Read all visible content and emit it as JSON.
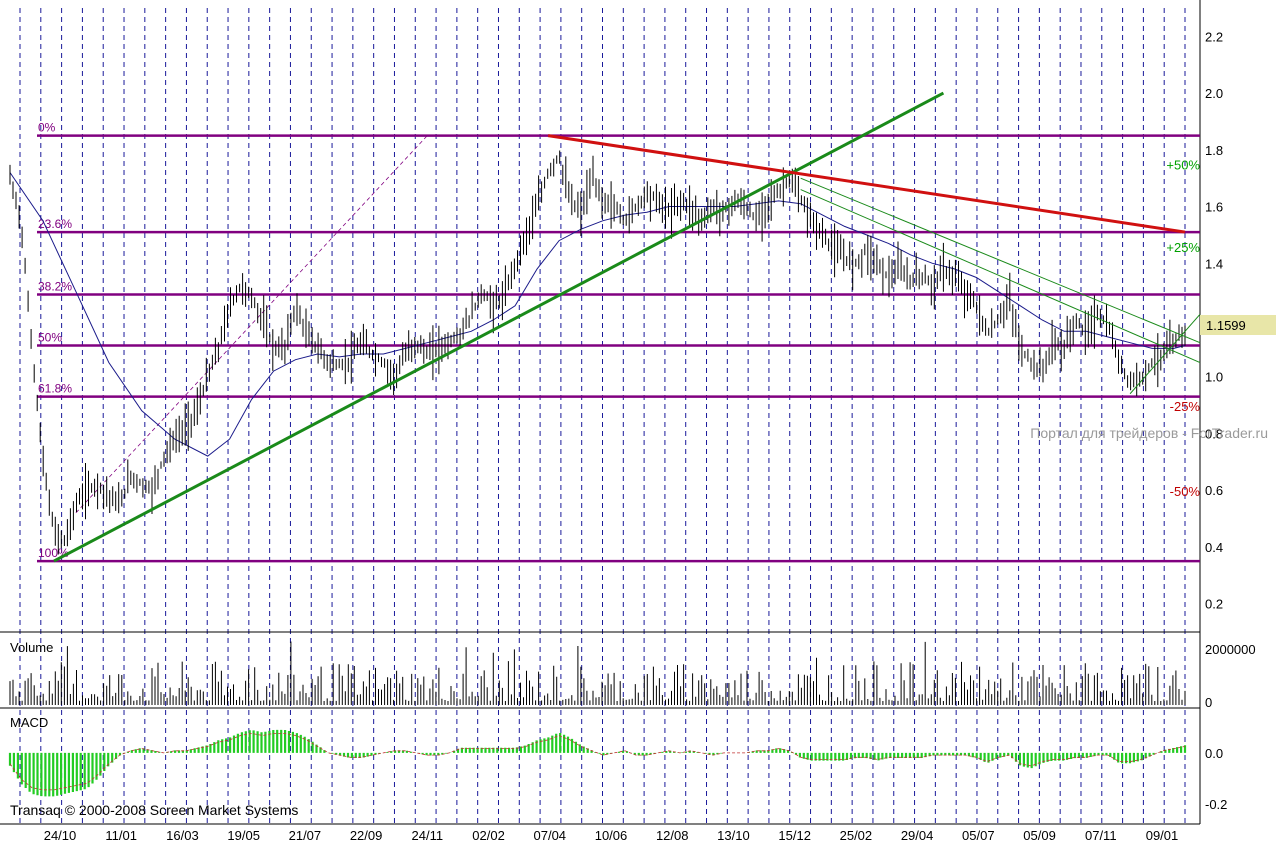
{
  "chart_data": [
    {
      "type": "candlestick",
      "title": "",
      "last_price_label": "1.1599",
      "last_price": 1.1599,
      "ylim": [
        0.1,
        2.3
      ],
      "yticks": [
        "0.2",
        "0.4",
        "0.6",
        "0.8",
        "1.0",
        "1.2",
        "1.4",
        "1.6",
        "1.8",
        "2.0",
        "2.2"
      ],
      "xticks": [
        "24/10",
        "11/01",
        "16/03",
        "19/05",
        "21/07",
        "22/09",
        "24/11",
        "02/02",
        "07/04",
        "10/06",
        "12/08",
        "13/10",
        "15/12",
        "25/02",
        "29/04",
        "05/07",
        "05/09",
        "07/11",
        "09/01"
      ],
      "close_path": [
        [
          0,
          1.7
        ],
        [
          1,
          1.55
        ],
        [
          2,
          1.1
        ],
        [
          3,
          0.7
        ],
        [
          4,
          0.45
        ],
        [
          5,
          0.42
        ],
        [
          6,
          0.55
        ],
        [
          7,
          0.6
        ],
        [
          8,
          0.62
        ],
        [
          9,
          0.58
        ],
        [
          10,
          0.55
        ],
        [
          11,
          0.65
        ],
        [
          12,
          0.62
        ],
        [
          13,
          0.6
        ],
        [
          14,
          0.72
        ],
        [
          15,
          0.78
        ],
        [
          16,
          0.82
        ],
        [
          17,
          0.88
        ],
        [
          18,
          1.0
        ],
        [
          19,
          1.1
        ],
        [
          20,
          1.25
        ],
        [
          21,
          1.32
        ],
        [
          22,
          1.28
        ],
        [
          23,
          1.2
        ],
        [
          24,
          1.1
        ],
        [
          25,
          1.1
        ],
        [
          26,
          1.25
        ],
        [
          27,
          1.15
        ],
        [
          28,
          1.1
        ],
        [
          29,
          1.05
        ],
        [
          30,
          1.04
        ],
        [
          31,
          1.06
        ],
        [
          32,
          1.12
        ],
        [
          33,
          1.08
        ],
        [
          34,
          1.05
        ],
        [
          35,
          1.0
        ],
        [
          36,
          1.08
        ],
        [
          37,
          1.12
        ],
        [
          38,
          1.08
        ],
        [
          39,
          1.1
        ],
        [
          40,
          1.12
        ],
        [
          41,
          1.15
        ],
        [
          42,
          1.22
        ],
        [
          43,
          1.3
        ],
        [
          44,
          1.25
        ],
        [
          45,
          1.28
        ],
        [
          46,
          1.4
        ],
        [
          47,
          1.5
        ],
        [
          48,
          1.6
        ],
        [
          49,
          1.72
        ],
        [
          50,
          1.78
        ],
        [
          51,
          1.62
        ],
        [
          52,
          1.58
        ],
        [
          53,
          1.7
        ],
        [
          54,
          1.62
        ],
        [
          55,
          1.6
        ],
        [
          56,
          1.55
        ],
        [
          57,
          1.6
        ],
        [
          58,
          1.65
        ],
        [
          59,
          1.62
        ],
        [
          60,
          1.58
        ],
        [
          61,
          1.62
        ],
        [
          62,
          1.6
        ],
        [
          63,
          1.55
        ],
        [
          64,
          1.6
        ],
        [
          65,
          1.58
        ],
        [
          66,
          1.62
        ],
        [
          67,
          1.6
        ],
        [
          68,
          1.55
        ],
        [
          69,
          1.62
        ],
        [
          70,
          1.65
        ],
        [
          71,
          1.7
        ],
        [
          72,
          1.62
        ],
        [
          73,
          1.55
        ],
        [
          74,
          1.5
        ],
        [
          75,
          1.45
        ],
        [
          76,
          1.42
        ],
        [
          77,
          1.4
        ],
        [
          78,
          1.45
        ],
        [
          79,
          1.4
        ],
        [
          80,
          1.35
        ],
        [
          81,
          1.38
        ],
        [
          82,
          1.34
        ],
        [
          83,
          1.36
        ],
        [
          84,
          1.32
        ],
        [
          85,
          1.38
        ],
        [
          86,
          1.35
        ],
        [
          87,
          1.3
        ],
        [
          88,
          1.25
        ],
        [
          89,
          1.15
        ],
        [
          90,
          1.2
        ],
        [
          91,
          1.28
        ],
        [
          92,
          1.1
        ],
        [
          93,
          1.05
        ],
        [
          94,
          1.02
        ],
        [
          95,
          1.12
        ],
        [
          96,
          1.1
        ],
        [
          97,
          1.2
        ],
        [
          98,
          1.15
        ],
        [
          99,
          1.22
        ],
        [
          100,
          1.18
        ],
        [
          101,
          1.05
        ],
        [
          102,
          0.98
        ],
        [
          103,
          1.0
        ],
        [
          104,
          1.05
        ],
        [
          105,
          1.08
        ],
        [
          106,
          1.12
        ],
        [
          107,
          1.16
        ]
      ],
      "ma_path": [
        [
          0,
          1.72
        ],
        [
          3,
          1.55
        ],
        [
          6,
          1.3
        ],
        [
          9,
          1.05
        ],
        [
          12,
          0.88
        ],
        [
          15,
          0.78
        ],
        [
          18,
          0.72
        ],
        [
          20,
          0.78
        ],
        [
          22,
          0.92
        ],
        [
          24,
          1.02
        ],
        [
          26,
          1.06
        ],
        [
          28,
          1.08
        ],
        [
          30,
          1.07
        ],
        [
          32,
          1.08
        ],
        [
          34,
          1.08
        ],
        [
          36,
          1.1
        ],
        [
          38,
          1.12
        ],
        [
          40,
          1.14
        ],
        [
          42,
          1.16
        ],
        [
          44,
          1.2
        ],
        [
          46,
          1.25
        ],
        [
          48,
          1.38
        ],
        [
          50,
          1.48
        ],
        [
          52,
          1.52
        ],
        [
          54,
          1.55
        ],
        [
          56,
          1.57
        ],
        [
          58,
          1.58
        ],
        [
          60,
          1.6
        ],
        [
          62,
          1.6
        ],
        [
          64,
          1.6
        ],
        [
          66,
          1.6
        ],
        [
          68,
          1.61
        ],
        [
          70,
          1.62
        ],
        [
          72,
          1.61
        ],
        [
          74,
          1.57
        ],
        [
          76,
          1.53
        ],
        [
          78,
          1.5
        ],
        [
          80,
          1.47
        ],
        [
          82,
          1.43
        ],
        [
          84,
          1.4
        ],
        [
          86,
          1.38
        ],
        [
          88,
          1.35
        ],
        [
          90,
          1.3
        ],
        [
          92,
          1.25
        ],
        [
          94,
          1.2
        ],
        [
          96,
          1.16
        ],
        [
          98,
          1.16
        ],
        [
          100,
          1.14
        ],
        [
          102,
          1.12
        ],
        [
          104,
          1.1
        ],
        [
          106,
          1.1
        ],
        [
          107,
          1.11
        ]
      ],
      "fib_levels": [
        {
          "label": "0%",
          "value": 1.85
        },
        {
          "label": "23.6%",
          "value": 1.51
        },
        {
          "label": "38.2%",
          "value": 1.29
        },
        {
          "label": "50%",
          "value": 1.11
        },
        {
          "label": "61.8%",
          "value": 0.93
        },
        {
          "label": "100%",
          "value": 0.35
        }
      ],
      "pct_markers": [
        {
          "label": "+50%",
          "value": 1.73,
          "color": "#00a000"
        },
        {
          "label": "+25%",
          "value": 1.44,
          "color": "#00a000"
        },
        {
          "label": "-25%",
          "value": 0.88,
          "color": "#c00000"
        },
        {
          "label": "-50%",
          "value": 0.58,
          "color": "#c00000"
        }
      ],
      "trendlines": [
        {
          "name": "support",
          "color": "#1a8a1a",
          "from": [
            4,
            0.35
          ],
          "to": [
            85,
            2.0
          ]
        },
        {
          "name": "resistance",
          "color": "#d01010",
          "from": [
            49,
            1.85
          ],
          "to": [
            107,
            1.51
          ]
        }
      ]
    },
    {
      "type": "bar",
      "pane": "Volume",
      "pane_label": "Volume",
      "yticks": [
        "0",
        "2000000"
      ],
      "ylim": [
        0,
        2000000
      ]
    },
    {
      "type": "histogram",
      "pane": "MACD",
      "pane_label": "MACD",
      "yticks": [
        "0.0",
        "-0.2"
      ],
      "ylim": [
        -0.27,
        0.16
      ],
      "values": [
        -0.05,
        -0.12,
        -0.16,
        -0.17,
        -0.17,
        -0.16,
        -0.15,
        -0.14,
        -0.1,
        -0.05,
        -0.01,
        0.01,
        0.02,
        0.01,
        0.0,
        0.01,
        0.01,
        0.02,
        0.03,
        0.05,
        0.06,
        0.08,
        0.09,
        0.08,
        0.09,
        0.09,
        0.08,
        0.06,
        0.03,
        0.0,
        -0.01,
        -0.02,
        -0.02,
        -0.01,
        0.0,
        0.01,
        0.01,
        0.0,
        -0.01,
        -0.01,
        0.0,
        0.02,
        0.02,
        0.02,
        0.02,
        0.02,
        0.02,
        0.03,
        0.05,
        0.06,
        0.08,
        0.06,
        0.03,
        0.01,
        -0.01,
        0.0,
        0.01,
        -0.01,
        -0.01,
        0.0,
        0.01,
        0.0,
        0.01,
        0.0,
        -0.01,
        0.0,
        0.0,
        0.0,
        0.01,
        0.01,
        0.02,
        0.01,
        -0.02,
        -0.03,
        -0.03,
        -0.03,
        -0.03,
        -0.02,
        -0.02,
        -0.03,
        -0.02,
        -0.02,
        -0.02,
        -0.02,
        -0.01,
        -0.01,
        -0.01,
        -0.01,
        -0.02,
        -0.04,
        -0.02,
        -0.01,
        -0.05,
        -0.06,
        -0.04,
        -0.03,
        -0.03,
        -0.02,
        -0.02,
        -0.01,
        -0.01,
        -0.04,
        -0.04,
        -0.03,
        -0.01,
        0.01,
        0.02,
        0.03
      ]
    }
  ],
  "watermark": "Портал для трейдеров - ForTrader.ru",
  "copyright": "Transaq © 2000-2008 Screen Market Systems",
  "colors": {
    "fib": "#800080",
    "support": "#1a8a1a",
    "resistance": "#d01010",
    "ma": "#1a1a8a",
    "macd": "#22cc22",
    "price_tag_bg": "#e8e6a8",
    "grid": "#1a1a9a"
  }
}
